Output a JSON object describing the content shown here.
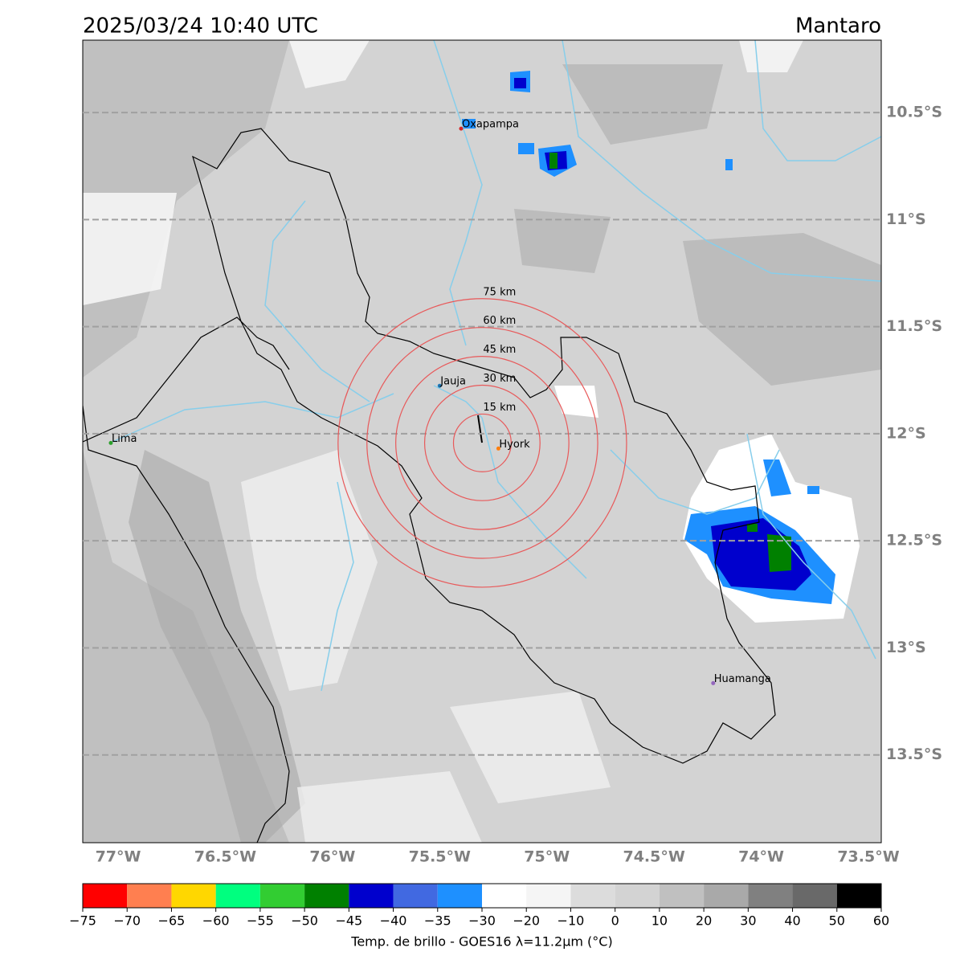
{
  "header": {
    "title": "2025/03/24 10:40 UTC",
    "region": "Mantaro"
  },
  "map": {
    "lon_range": [
      -77.165,
      -73.44
    ],
    "lat_range": [
      -10.162,
      -13.91
    ],
    "lon_ticks": [
      {
        "value": -77,
        "label": "77°W"
      },
      {
        "value": -76.5,
        "label": "76.5°W"
      },
      {
        "value": -76,
        "label": "76°W"
      },
      {
        "value": -75.5,
        "label": "75.5°W"
      },
      {
        "value": -75,
        "label": "75°W"
      },
      {
        "value": -74.5,
        "label": "74.5°W"
      },
      {
        "value": -74,
        "label": "74°W"
      },
      {
        "value": -73.5,
        "label": "73.5°W"
      }
    ],
    "lat_ticks": [
      {
        "value": -10.5,
        "label": "10.5°S"
      },
      {
        "value": -11,
        "label": "11°S"
      },
      {
        "value": -11.5,
        "label": "11.5°S"
      },
      {
        "value": -12,
        "label": "12°S"
      },
      {
        "value": -12.5,
        "label": "12.5°S"
      },
      {
        "value": -13,
        "label": "13°S"
      },
      {
        "value": -13.5,
        "label": "13.5°S"
      }
    ],
    "lat_grid": true,
    "cities": [
      {
        "name": "Oxapampa",
        "lon": -75.4,
        "lat": -10.575,
        "color": "#d62728"
      },
      {
        "name": "Jauja",
        "lon": -75.5,
        "lat": -11.776,
        "color": "#1f77b4"
      },
      {
        "name": "Hyork",
        "lon": -75.226,
        "lat": -12.069,
        "color": "#ff7f0e"
      },
      {
        "name": "Lima",
        "lon": -77.034,
        "lat": -12.043,
        "color": "#2ca02c"
      },
      {
        "name": "Huamanga",
        "lon": -74.224,
        "lat": -13.165,
        "color": "#9467bd"
      }
    ],
    "rings": {
      "center": [
        -75.301,
        -12.043
      ],
      "color": "#e8595a",
      "radii": [
        {
          "value": 15,
          "label": "15 km"
        },
        {
          "value": 30,
          "label": "30 km"
        },
        {
          "value": 45,
          "label": "45 km"
        },
        {
          "value": 60,
          "label": "60 km"
        },
        {
          "value": 75,
          "label": "75 km"
        }
      ]
    }
  },
  "colorbar": {
    "bounds": [
      {
        "value": -75,
        "label": "−75"
      },
      {
        "value": -70,
        "label": "−70"
      },
      {
        "value": -65,
        "label": "−65"
      },
      {
        "value": -60,
        "label": "−60"
      },
      {
        "value": -55,
        "label": "−55"
      },
      {
        "value": -50,
        "label": "−50"
      },
      {
        "value": -45,
        "label": "−45"
      },
      {
        "value": -40,
        "label": "−40"
      },
      {
        "value": -35,
        "label": "−35"
      },
      {
        "value": -30,
        "label": "−30"
      },
      {
        "value": -20,
        "label": "−20"
      },
      {
        "value": -10,
        "label": "−10"
      },
      0,
      10,
      20,
      30,
      40,
      50,
      60
    ],
    "colors": [
      "#ff0000",
      "#ff7f50",
      "#ffd700",
      "#00ff7f",
      "#32cd32",
      "#008000",
      "#0000cd",
      "#4169e1",
      "#1e90ff",
      "#ffffff",
      "#f5f5f5",
      "#dcdcdc",
      "#d3d3d3",
      "#c0c0c0",
      "#a9a9a9",
      "#808080",
      "#696969",
      "#000000"
    ],
    "label": "Temp. de brillo - GOES16 λ=11.2μm (°C)"
  }
}
